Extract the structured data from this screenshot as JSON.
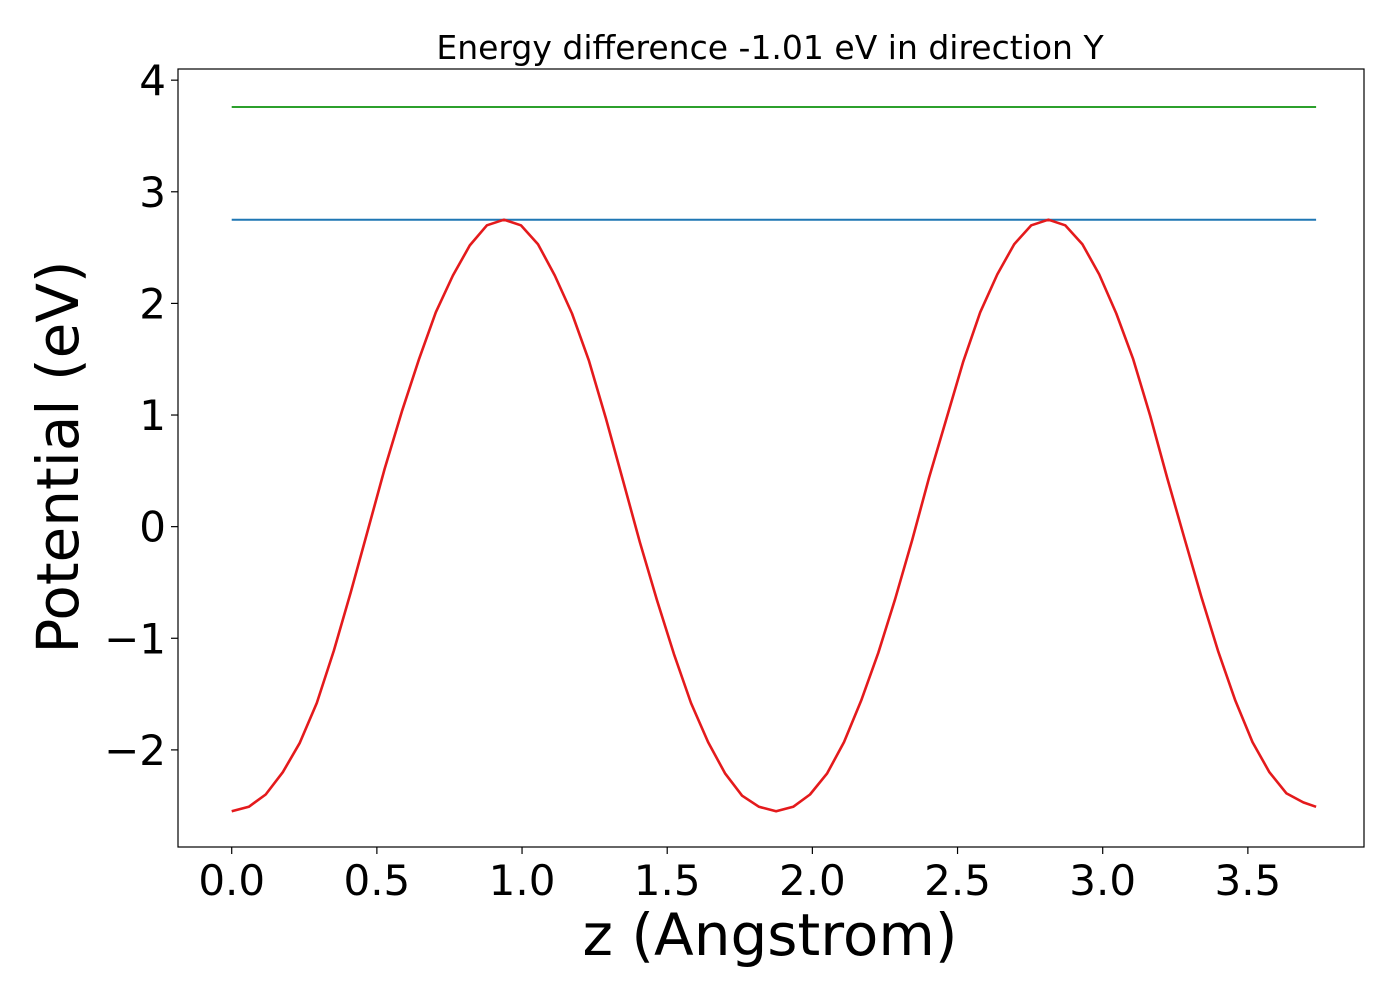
{
  "chart_data": {
    "type": "line",
    "title": "Energy difference -1.01 eV in direction Y",
    "xlabel": "z (Angstrom)",
    "ylabel": "Potential (eV)",
    "xlim": [
      -0.185,
      3.9
    ],
    "ylim": [
      -2.87,
      4.1
    ],
    "xticks": [
      0.0,
      0.5,
      1.0,
      1.5,
      2.0,
      2.5,
      3.0,
      3.5
    ],
    "xtick_labels": [
      "0.0",
      "0.5",
      "1.0",
      "1.5",
      "2.0",
      "2.5",
      "3.0",
      "3.5"
    ],
    "yticks": [
      -2,
      -1,
      0,
      1,
      2,
      3,
      4
    ],
    "ytick_labels": [
      "−2",
      "−1",
      "0",
      "1",
      "2",
      "3",
      "4"
    ],
    "grid": false,
    "legend": "none",
    "series": [
      {
        "color": "#2ca02c",
        "x": [
          0.0,
          3.735
        ],
        "y": [
          3.76,
          3.76
        ]
      },
      {
        "color": "#1f77b4",
        "x": [
          0.0,
          3.735
        ],
        "y": [
          2.75,
          2.75
        ]
      },
      {
        "color": "#e41a1c",
        "x": [
          0.0,
          0.059,
          0.117,
          0.176,
          0.234,
          0.293,
          0.352,
          0.41,
          0.469,
          0.527,
          0.586,
          0.645,
          0.703,
          0.762,
          0.82,
          0.879,
          0.938,
          0.996,
          1.055,
          1.113,
          1.172,
          1.23,
          1.289,
          1.348,
          1.406,
          1.465,
          1.523,
          1.582,
          1.641,
          1.699,
          1.758,
          1.816,
          1.875,
          1.934,
          1.992,
          2.051,
          2.109,
          2.168,
          2.227,
          2.285,
          2.344,
          2.402,
          2.461,
          2.52,
          2.578,
          2.637,
          2.695,
          2.754,
          2.813,
          2.871,
          2.93,
          2.988,
          3.047,
          3.105,
          3.164,
          3.223,
          3.281,
          3.34,
          3.398,
          3.457,
          3.516,
          3.574,
          3.633,
          3.691,
          3.735
        ],
        "y": [
          -2.55,
          -2.51,
          -2.4,
          -2.2,
          -1.94,
          -1.58,
          -1.11,
          -0.59,
          -0.03,
          0.52,
          1.03,
          1.5,
          1.92,
          2.25,
          2.52,
          2.7,
          2.75,
          2.7,
          2.53,
          2.25,
          1.91,
          1.49,
          0.97,
          0.41,
          -0.14,
          -0.66,
          -1.14,
          -1.58,
          -1.93,
          -2.21,
          -2.41,
          -2.51,
          -2.55,
          -2.51,
          -2.4,
          -2.21,
          -1.93,
          -1.56,
          -1.13,
          -0.65,
          -0.12,
          0.44,
          0.96,
          1.48,
          1.92,
          2.26,
          2.53,
          2.7,
          2.75,
          2.7,
          2.53,
          2.26,
          1.91,
          1.5,
          0.99,
          0.43,
          -0.1,
          -0.63,
          -1.12,
          -1.56,
          -1.93,
          -2.2,
          -2.39,
          -2.47,
          -2.51
        ]
      }
    ]
  }
}
